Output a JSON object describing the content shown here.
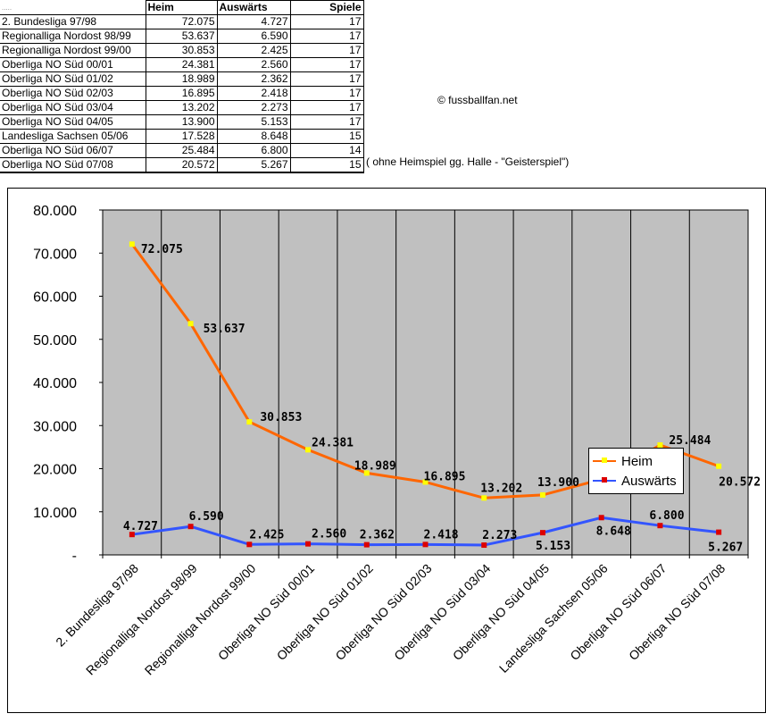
{
  "table": {
    "first_header": ".....",
    "headers": [
      "Heim",
      "Auswärts",
      "Spiele"
    ],
    "rows": [
      {
        "season": "2. Bundesliga  97/98",
        "heim": "72.075",
        "auswaerts": "4.727",
        "spiele": "17"
      },
      {
        "season": "Regionalliga Nordost 98/99",
        "heim": "53.637",
        "auswaerts": "6.590",
        "spiele": "17"
      },
      {
        "season": "Regionalliga Nordost 99/00",
        "heim": "30.853",
        "auswaerts": "2.425",
        "spiele": "17"
      },
      {
        "season": "Oberliga NO Süd 00/01",
        "heim": "24.381",
        "auswaerts": "2.560",
        "spiele": "17"
      },
      {
        "season": "Oberliga NO Süd 01/02",
        "heim": "18.989",
        "auswaerts": "2.362",
        "spiele": "17"
      },
      {
        "season": "Oberliga NO Süd 02/03",
        "heim": "16.895",
        "auswaerts": "2.418",
        "spiele": "17"
      },
      {
        "season": "Oberliga NO Süd 03/04",
        "heim": "13.202",
        "auswaerts": "2.273",
        "spiele": "17"
      },
      {
        "season": "Oberliga NO Süd 04/05",
        "heim": "13.900",
        "auswaerts": "5.153",
        "spiele": "17"
      },
      {
        "season": "Landesliga Sachsen 05/06",
        "heim": "17.528",
        "auswaerts": "8.648",
        "spiele": "15"
      },
      {
        "season": "Oberliga NO Süd 06/07",
        "heim": "25.484",
        "auswaerts": "6.800",
        "spiele": "14"
      },
      {
        "season": "Oberliga NO Süd 07/08",
        "heim": "20.572",
        "auswaerts": "5.267",
        "spiele": "15"
      }
    ]
  },
  "notes": {
    "copyright": "© fussballfan.net",
    "ghost_game": "( ohne Heimspiel gg. Halle - \"Geisterspiel\")"
  },
  "colors": {
    "heim_line": "#ff6600",
    "heim_marker": "#ffff00",
    "auswaerts_line": "#3355ff",
    "auswaerts_marker": "#dd0000",
    "plot_bg": "#c0c0c0"
  },
  "chart_data": {
    "type": "line",
    "categories": [
      "2. Bundesliga  97/98",
      "Regionalliga Nordost 98/99",
      "Regionalliga Nordost 99/00",
      "Oberliga NO Süd 00/01",
      "Oberliga NO Süd 01/02",
      "Oberliga NO Süd 02/03",
      "Oberliga NO Süd 03/04",
      "Oberliga NO Süd 04/05",
      "Landesliga Sachsen 05/06",
      "Oberliga NO Süd 06/07",
      "Oberliga NO Süd 07/08"
    ],
    "series": [
      {
        "name": "Heim",
        "values": [
          72075,
          53637,
          30853,
          24381,
          18989,
          16895,
          13202,
          13900,
          17528,
          25484,
          20572
        ],
        "labels": [
          "72.075",
          "53.637",
          "30.853",
          "24.381",
          "18.989",
          "16.895",
          "13.202",
          "13.900",
          "17.528",
          "25.484",
          "20.572"
        ]
      },
      {
        "name": "Auswärts",
        "values": [
          4727,
          6590,
          2425,
          2560,
          2362,
          2418,
          2273,
          5153,
          8648,
          6800,
          5267
        ],
        "labels": [
          "4.727",
          "6.590",
          "2.425",
          "2.560",
          "2.362",
          "2.418",
          "2.273",
          "5.153",
          "8.648",
          "6.800",
          "5.267"
        ]
      }
    ],
    "ylim": [
      0,
      80000
    ],
    "y_ticks": [
      0,
      10000,
      20000,
      30000,
      40000,
      50000,
      60000,
      70000,
      80000
    ],
    "y_tick_labels": [
      "-",
      "10.000",
      "20.000",
      "30.000",
      "40.000",
      "50.000",
      "60.000",
      "70.000",
      "80.000"
    ],
    "grid": "vertical",
    "legend_position": "top-right"
  }
}
